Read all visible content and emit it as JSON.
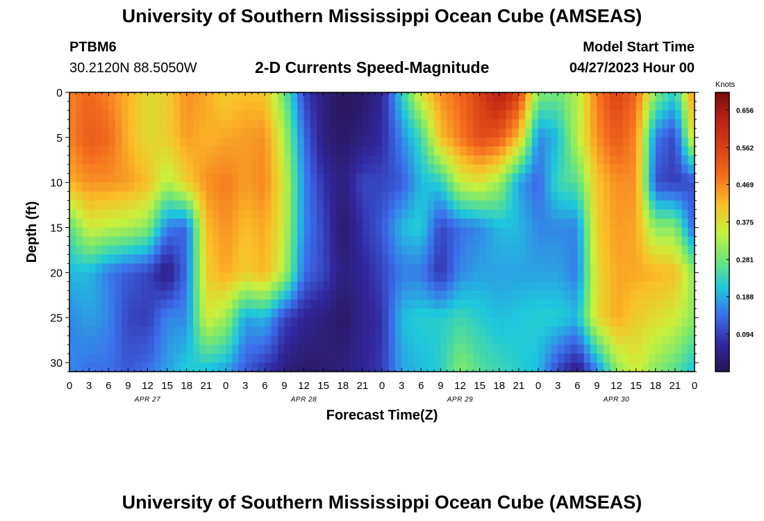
{
  "header": {
    "title_top": "University of Southern Mississippi Ocean Cube (AMSEAS)",
    "station_id": "PTBM6",
    "station_coords": "30.2120N  88.5050W",
    "plot_title": "2-D Currents Speed-Magnitude",
    "model_start_label": "Model Start Time",
    "model_start_value": "04/27/2023 Hour 00",
    "title_bottom": "University of Southern Mississippi Ocean Cube (AMSEAS)"
  },
  "chart_data": {
    "type": "heatmap",
    "title": "2-D Currents Speed-Magnitude",
    "xlabel": "Forecast Time(Z)",
    "ylabel": "Depth (ft)",
    "xlim": [
      0,
      96
    ],
    "ylim": [
      31,
      0
    ],
    "x_ticks": [
      "0",
      "3",
      "6",
      "9",
      "12",
      "15",
      "18",
      "21",
      "0",
      "3",
      "6",
      "9",
      "12",
      "15",
      "18",
      "21",
      "0",
      "3",
      "6",
      "9",
      "12",
      "15",
      "18",
      "21",
      "0",
      "3",
      "6",
      "9",
      "12",
      "15",
      "18",
      "21",
      "0"
    ],
    "y_ticks": [
      "0",
      "5",
      "10",
      "15",
      "20",
      "25",
      "30"
    ],
    "date_labels": [
      "APR 27",
      "APR 28",
      "APR 29",
      "APR 30"
    ],
    "colorbar": {
      "unit": "Knots",
      "ticks": [
        "0.656",
        "0.562",
        "0.469",
        "0.375",
        "0.281",
        "0.188",
        "0.094"
      ],
      "min": 0.0,
      "max": 0.7
    },
    "depths": [
      0,
      5,
      10,
      15,
      20,
      25,
      31
    ],
    "hours": [
      0,
      3,
      6,
      9,
      12,
      15,
      18,
      21,
      24,
      27,
      30,
      33,
      36,
      39,
      42,
      45,
      48,
      51,
      54,
      57,
      60,
      63,
      66,
      69,
      72,
      75,
      78,
      81,
      84,
      87,
      90,
      93,
      96
    ],
    "values": [
      [
        0.47,
        0.5,
        0.47,
        0.43,
        0.38,
        0.4,
        0.46,
        0.44,
        0.4,
        0.42,
        0.41,
        0.28,
        0.1,
        0.04,
        0.01,
        0.02,
        0.06,
        0.22,
        0.38,
        0.46,
        0.5,
        0.56,
        0.64,
        0.56,
        0.3,
        0.28,
        0.33,
        0.48,
        0.56,
        0.5,
        0.3,
        0.22,
        0.48
      ],
      [
        0.47,
        0.52,
        0.5,
        0.43,
        0.38,
        0.4,
        0.45,
        0.43,
        0.44,
        0.45,
        0.46,
        0.33,
        0.14,
        0.04,
        0.02,
        0.04,
        0.07,
        0.16,
        0.24,
        0.42,
        0.48,
        0.54,
        0.52,
        0.42,
        0.16,
        0.2,
        0.34,
        0.46,
        0.52,
        0.47,
        0.15,
        0.1,
        0.4
      ],
      [
        0.43,
        0.46,
        0.46,
        0.45,
        0.42,
        0.33,
        0.4,
        0.46,
        0.48,
        0.45,
        0.47,
        0.36,
        0.16,
        0.08,
        0.04,
        0.1,
        0.1,
        0.12,
        0.2,
        0.22,
        0.35,
        0.37,
        0.32,
        0.18,
        0.13,
        0.24,
        0.26,
        0.41,
        0.46,
        0.46,
        0.11,
        0.09,
        0.11
      ],
      [
        0.26,
        0.36,
        0.34,
        0.33,
        0.3,
        0.15,
        0.13,
        0.42,
        0.46,
        0.42,
        0.44,
        0.35,
        0.16,
        0.1,
        0.02,
        0.08,
        0.12,
        0.2,
        0.22,
        0.1,
        0.14,
        0.16,
        0.2,
        0.2,
        0.16,
        0.16,
        0.16,
        0.4,
        0.45,
        0.44,
        0.3,
        0.3,
        0.12
      ],
      [
        0.2,
        0.2,
        0.15,
        0.12,
        0.1,
        0.04,
        0.14,
        0.4,
        0.44,
        0.4,
        0.43,
        0.33,
        0.14,
        0.1,
        0.04,
        0.06,
        0.1,
        0.15,
        0.15,
        0.08,
        0.16,
        0.18,
        0.18,
        0.18,
        0.18,
        0.18,
        0.15,
        0.38,
        0.44,
        0.44,
        0.43,
        0.42,
        0.3
      ],
      [
        0.16,
        0.18,
        0.16,
        0.1,
        0.09,
        0.16,
        0.16,
        0.36,
        0.32,
        0.18,
        0.2,
        0.1,
        0.06,
        0.04,
        0.02,
        0.05,
        0.08,
        0.2,
        0.22,
        0.22,
        0.24,
        0.22,
        0.2,
        0.21,
        0.22,
        0.22,
        0.2,
        0.38,
        0.44,
        0.4,
        0.38,
        0.36,
        0.3
      ],
      [
        0.16,
        0.14,
        0.14,
        0.12,
        0.14,
        0.18,
        0.22,
        0.2,
        0.18,
        0.12,
        0.08,
        0.04,
        0.02,
        0.03,
        0.04,
        0.06,
        0.09,
        0.18,
        0.2,
        0.22,
        0.3,
        0.26,
        0.24,
        0.22,
        0.2,
        0.1,
        0.04,
        0.15,
        0.3,
        0.36,
        0.3,
        0.26,
        0.2
      ]
    ]
  }
}
